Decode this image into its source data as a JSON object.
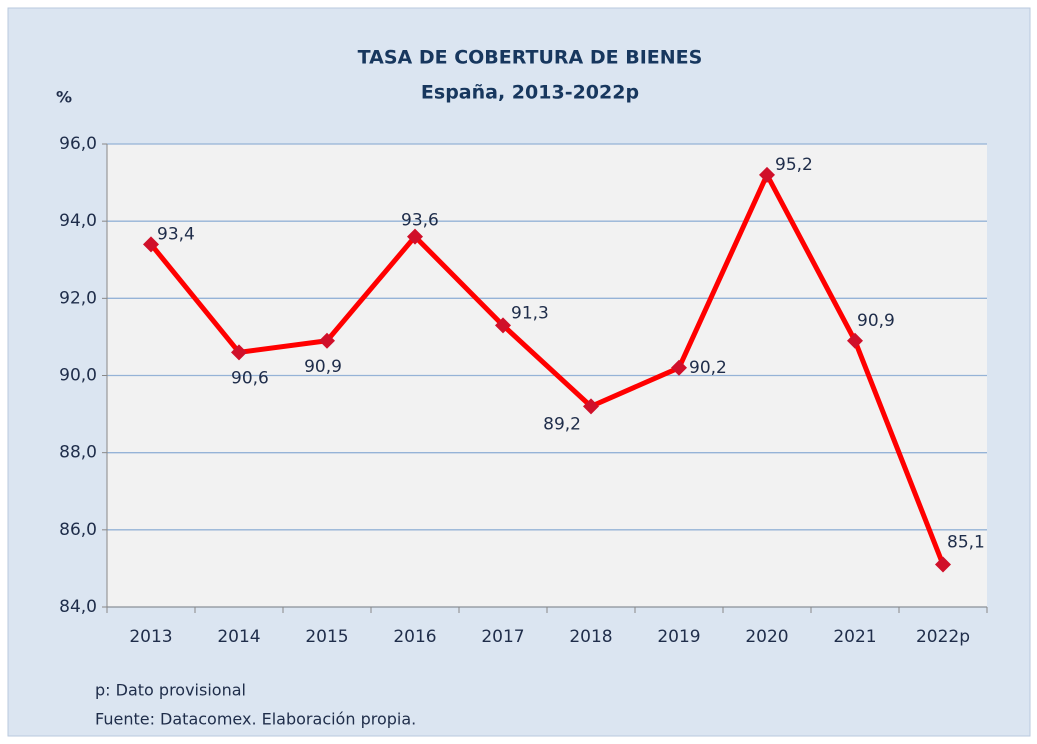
{
  "chart_data": {
    "type": "line",
    "title": "TASA DE COBERTURA DE BIENES",
    "subtitle": "España, 2013-2022p",
    "y_label": "%",
    "categories": [
      "2013",
      "2014",
      "2015",
      "2016",
      "2017",
      "2018",
      "2019",
      "2020",
      "2021",
      "2022p"
    ],
    "series": [
      {
        "name": "Tasa de cobertura",
        "color": "#ff0000",
        "marker_color": "#d0102a",
        "values": [
          93.4,
          90.6,
          90.9,
          93.6,
          91.3,
          89.2,
          90.2,
          95.2,
          90.9,
          85.1
        ],
        "value_labels": [
          "93,4",
          "90,6",
          "90,9",
          "93,6",
          "91,3",
          "89,2",
          "90,2",
          "95,2",
          "90,9",
          "85,1"
        ]
      }
    ],
    "ylim": [
      84,
      96
    ],
    "yticks": [
      {
        "value": 84,
        "label": "84,0"
      },
      {
        "value": 86,
        "label": "86,0"
      },
      {
        "value": 88,
        "label": "88,0"
      },
      {
        "value": 90,
        "label": "90,0"
      },
      {
        "value": 92,
        "label": "92,0"
      },
      {
        "value": 94,
        "label": "94,0"
      },
      {
        "value": 96,
        "label": "96,0"
      }
    ],
    "grid": true,
    "notes": [
      "p: Dato provisional",
      "Fuente: Datacomex. Elaboración propia."
    ]
  }
}
